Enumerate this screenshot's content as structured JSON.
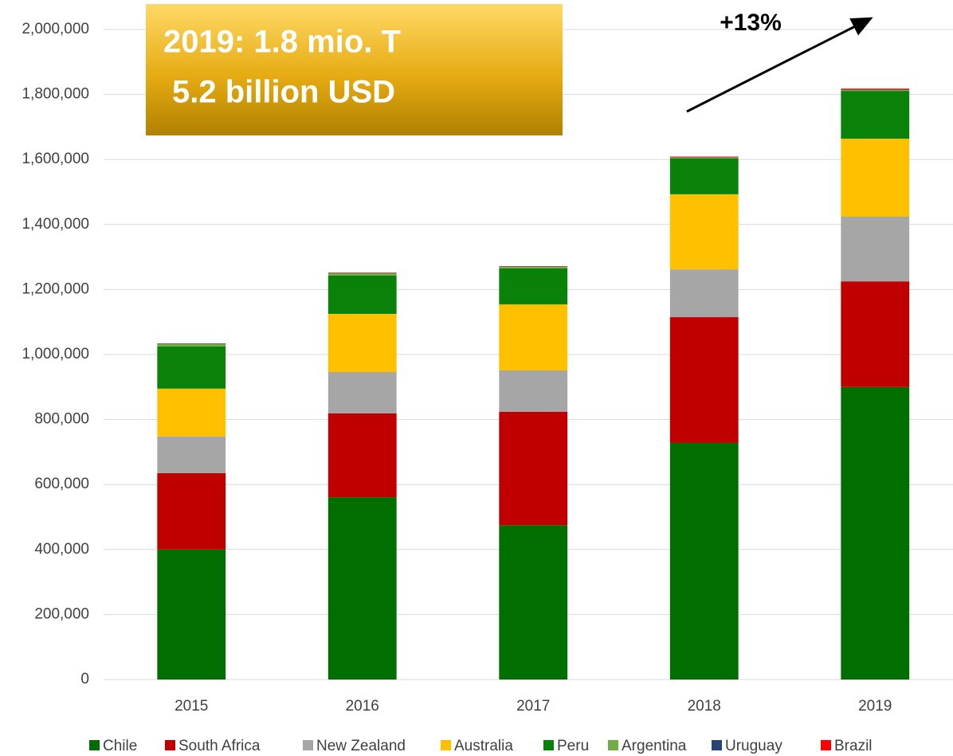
{
  "chart_data": {
    "type": "stacked_bar",
    "annotations": [
      "2019: 1.8 mio. T",
      "5.2 billion USD",
      "+13%"
    ],
    "categories": [
      "2015",
      "2016",
      "2017",
      "2018",
      "2019"
    ],
    "series": [
      {
        "name": "Chile",
        "color": "#006e00",
        "values": [
          400000,
          561000,
          475000,
          728000,
          900000
        ]
      },
      {
        "name": "South Africa",
        "color": "#c00000",
        "values": [
          235000,
          258000,
          349000,
          387000,
          325000
        ]
      },
      {
        "name": "New Zealand",
        "color": "#a6a6a6",
        "values": [
          113000,
          127000,
          127000,
          147000,
          199000
        ]
      },
      {
        "name": "Australia",
        "color": "#ffc000",
        "values": [
          147000,
          179000,
          203000,
          231000,
          240000
        ]
      },
      {
        "name": "Peru",
        "color": "#0a820a",
        "values": [
          130000,
          118000,
          111000,
          110000,
          147000
        ]
      },
      {
        "name": "Argentina",
        "color": "#70ad47",
        "values": [
          7000,
          7000,
          5000,
          3000,
          3000
        ]
      },
      {
        "name": "Uruguay",
        "color": "#264478",
        "values": [
          1000,
          1000,
          1000,
          1000,
          1000
        ]
      },
      {
        "name": "Brazil",
        "color": "#ff0000",
        "values": [
          1000,
          1000,
          1000,
          2000,
          3000
        ]
      }
    ],
    "ylim": [
      0,
      2000000
    ],
    "yticks": [
      0,
      {
        "value": 200000,
        "label": "200,000"
      },
      {
        "value": 400000,
        "label": "400,000"
      },
      {
        "value": 600000,
        "label": "600,000"
      },
      {
        "value": 800000,
        "label": "800,000"
      },
      {
        "value": 1000000,
        "label": "1,000,000"
      },
      {
        "value": 1200000,
        "label": "1,200,000"
      },
      {
        "value": 1400000,
        "label": "1,400,000"
      },
      {
        "value": 1600000,
        "label": "1,600,000"
      },
      {
        "value": 1800000,
        "label": "1,800,000"
      },
      {
        "value": 2000000,
        "label": "2,000,000"
      }
    ],
    "grid": true,
    "legend": "bottom"
  }
}
